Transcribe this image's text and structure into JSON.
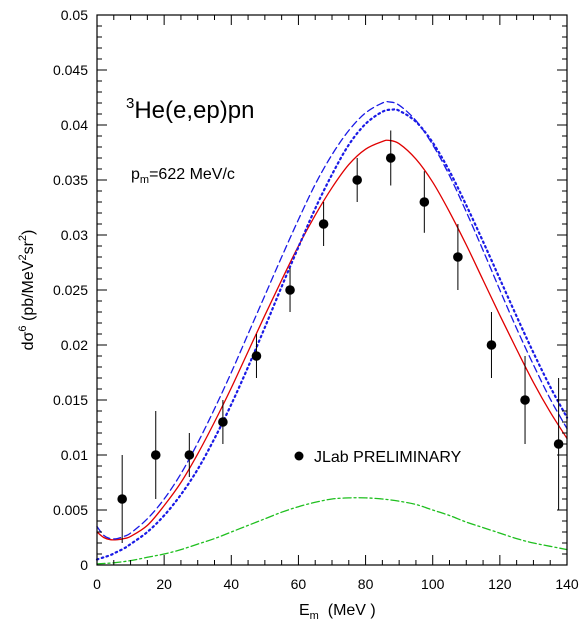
{
  "chart_data": {
    "type": "scatter",
    "title": "",
    "xlabel": {
      "base": "E",
      "sub": "m",
      "rest": "  (MeV )"
    },
    "ylabel": {
      "parts": [
        "dσ",
        "6",
        " (pb/MeV",
        "2",
        "sr",
        "2",
        ")"
      ]
    },
    "xlim": [
      0,
      140
    ],
    "ylim": [
      0,
      0.05
    ],
    "xticks": [
      0,
      20,
      40,
      60,
      80,
      100,
      120,
      140
    ],
    "xtick_labels": [
      "0",
      "20",
      "40",
      "60",
      "80",
      "100",
      "120",
      "140"
    ],
    "yticks": [
      0,
      0.005,
      0.01,
      0.015,
      0.02,
      0.025,
      0.03,
      0.035,
      0.04,
      0.045,
      0.05
    ],
    "ytick_labels": [
      "0",
      "0.005",
      "0.01",
      "0.015",
      "0.02",
      "0.025",
      "0.03",
      "0.035",
      "0.04",
      "0.045",
      "0.05"
    ],
    "grid": false,
    "annotations": {
      "reaction": {
        "sup": "3",
        "text": "He(e,ep)pn"
      },
      "momentum": {
        "base": "p",
        "sub": "m",
        "text": "=622 MeV/c"
      },
      "legend_label": "JLab  PRELIMINARY"
    },
    "data_points": {
      "x": [
        7.5,
        17.5,
        27.5,
        37.5,
        47.5,
        57.5,
        67.5,
        77.5,
        87.5,
        97.5,
        107.5,
        117.5,
        127.5,
        137.5
      ],
      "y": [
        0.006,
        0.01,
        0.01,
        0.013,
        0.019,
        0.025,
        0.031,
        0.035,
        0.037,
        0.033,
        0.028,
        0.02,
        0.015,
        0.011
      ],
      "err": [
        0.004,
        0.004,
        0.002,
        0.002,
        0.002,
        0.002,
        0.002,
        0.002,
        0.0025,
        0.0028,
        0.003,
        0.003,
        0.004,
        0.006
      ],
      "color": "#000000"
    },
    "series": [
      {
        "style": "solid",
        "color": "#e00000",
        "x": [
          0,
          2,
          4,
          6,
          8,
          10,
          15,
          20,
          25,
          30,
          35,
          40,
          45,
          50,
          55,
          60,
          65,
          70,
          75,
          80,
          85,
          87,
          90,
          95,
          100,
          105,
          110,
          115,
          120,
          125,
          130,
          135,
          140
        ],
        "y": [
          0.003,
          0.0025,
          0.0023,
          0.0023,
          0.0024,
          0.0026,
          0.0036,
          0.0054,
          0.0075,
          0.0101,
          0.013,
          0.0161,
          0.0194,
          0.0227,
          0.0259,
          0.029,
          0.0318,
          0.0343,
          0.0364,
          0.0378,
          0.0385,
          0.0386,
          0.0383,
          0.0369,
          0.0348,
          0.0321,
          0.0291,
          0.0259,
          0.0227,
          0.0196,
          0.0166,
          0.0139,
          0.0115
        ]
      },
      {
        "style": "dashed",
        "color": "#1a1ae6",
        "x": [
          0,
          2,
          4,
          6,
          8,
          10,
          15,
          20,
          25,
          30,
          35,
          40,
          45,
          50,
          55,
          60,
          65,
          70,
          75,
          80,
          85,
          87,
          90,
          95,
          100,
          105,
          110,
          115,
          120,
          125,
          130,
          135,
          140
        ],
        "y": [
          0.0035,
          0.0027,
          0.0024,
          0.0024,
          0.0026,
          0.0029,
          0.0042,
          0.006,
          0.0083,
          0.0111,
          0.0142,
          0.0175,
          0.021,
          0.0245,
          0.028,
          0.0314,
          0.0346,
          0.0373,
          0.0395,
          0.0411,
          0.042,
          0.0421,
          0.0418,
          0.0404,
          0.0382,
          0.0354,
          0.0321,
          0.0286,
          0.025,
          0.0215,
          0.0182,
          0.0151,
          0.0124
        ]
      },
      {
        "style": "dotted",
        "color": "#1a1ae6",
        "x": [
          0,
          2,
          4,
          6,
          8,
          10,
          15,
          20,
          25,
          30,
          35,
          40,
          45,
          50,
          55,
          60,
          65,
          70,
          75,
          80,
          85,
          88,
          90,
          95,
          100,
          105,
          110,
          115,
          120,
          125,
          130,
          135,
          140
        ],
        "y": [
          0.0005,
          0.0007,
          0.0009,
          0.0012,
          0.0015,
          0.0019,
          0.003,
          0.0045,
          0.0064,
          0.0087,
          0.0115,
          0.0146,
          0.018,
          0.0216,
          0.0253,
          0.0289,
          0.0324,
          0.0355,
          0.0382,
          0.0401,
          0.0412,
          0.0414,
          0.0413,
          0.0403,
          0.0384,
          0.0358,
          0.0327,
          0.0294,
          0.026,
          0.0226,
          0.0193,
          0.0162,
          0.0134
        ]
      },
      {
        "style": "dashdot",
        "color": "#1fbf1f",
        "x": [
          0,
          5,
          10,
          15,
          20,
          25,
          30,
          35,
          40,
          45,
          50,
          55,
          60,
          65,
          70,
          75,
          80,
          85,
          90,
          95,
          100,
          105,
          110,
          115,
          120,
          125,
          130,
          135,
          140
        ],
        "y": [
          0.0001,
          0.0002,
          0.0004,
          0.0007,
          0.001,
          0.0014,
          0.0019,
          0.0024,
          0.003,
          0.0036,
          0.0042,
          0.0048,
          0.0053,
          0.0057,
          0.006,
          0.0061,
          0.0061,
          0.006,
          0.0058,
          0.0055,
          0.005,
          0.0045,
          0.0039,
          0.0034,
          0.0029,
          0.0024,
          0.002,
          0.0017,
          0.0014
        ]
      }
    ]
  }
}
